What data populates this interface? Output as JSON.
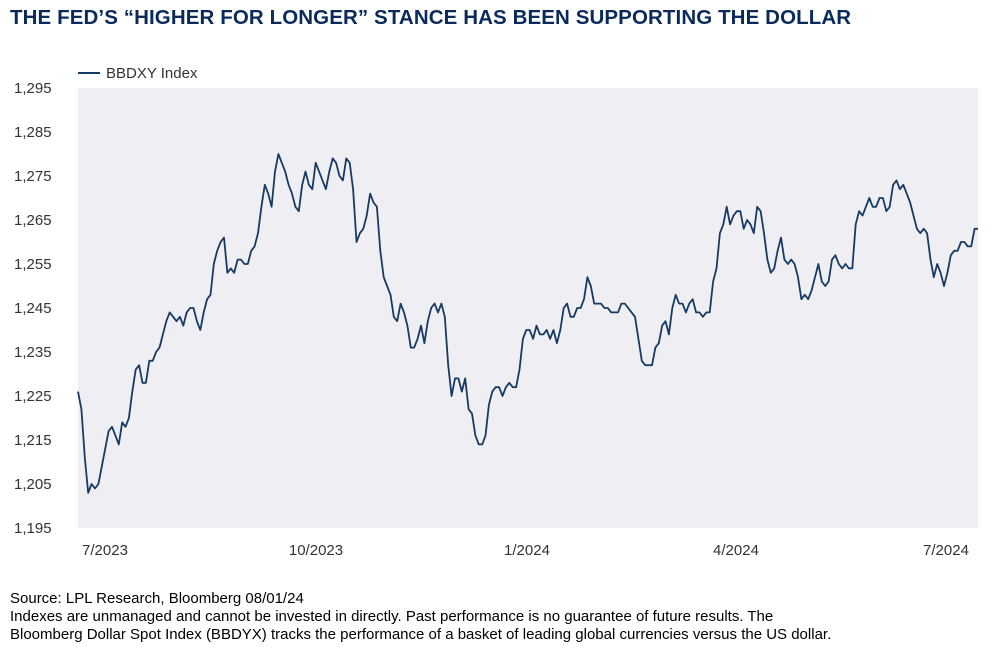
{
  "title": "THE FED’S “HIGHER FOR LONGER” STANCE HAS BEEN SUPPORTING THE DOLLAR",
  "footer": {
    "source": "Source: LPL Research, Bloomberg 08/01/24",
    "disclaimer_line1": "Indexes are unmanaged and cannot be invested in directly. Past performance is no guarantee of future results. The",
    "disclaimer_line2": "Bloomberg Dollar Spot Index (BBDYX) tracks the performance of a basket of leading global currencies versus the US dollar."
  },
  "colors": {
    "line": "#163a63",
    "plot_bg": "#efeff3",
    "title": "#0a2a5c"
  },
  "chart_data": {
    "type": "line",
    "legend_position": "top-left",
    "grid": false,
    "ylim": [
      1195,
      1295
    ],
    "y_ticks": [
      "1,295",
      "1,285",
      "1,275",
      "1,265",
      "1,255",
      "1,245",
      "1,235",
      "1,225",
      "1,215",
      "1,205",
      "1,195"
    ],
    "x_ticks": [
      "7/2023",
      "10/2023",
      "1/2024",
      "4/2024",
      "7/2024"
    ],
    "series": [
      {
        "name": "BBDXY Index",
        "values": [
          1226,
          1222,
          1211,
          1203,
          1205,
          1204,
          1205,
          1209,
          1213,
          1217,
          1218,
          1216,
          1214,
          1219,
          1218,
          1220,
          1226,
          1231,
          1232,
          1228,
          1228,
          1233,
          1233,
          1235,
          1236,
          1239,
          1242,
          1244,
          1243,
          1242,
          1243,
          1241,
          1244,
          1245,
          1245,
          1242,
          1240,
          1244,
          1247,
          1248,
          1255,
          1258,
          1260,
          1261,
          1253,
          1254,
          1253,
          1256,
          1256,
          1255,
          1255,
          1258,
          1259,
          1262,
          1268,
          1273,
          1271,
          1268,
          1276,
          1280,
          1278,
          1276,
          1273,
          1271,
          1268,
          1267,
          1273,
          1276,
          1273,
          1272,
          1278,
          1276,
          1274,
          1272,
          1276,
          1279,
          1278,
          1275,
          1274,
          1279,
          1278,
          1272,
          1260,
          1262,
          1263,
          1266,
          1271,
          1269,
          1268,
          1258,
          1252,
          1250,
          1248,
          1243,
          1242,
          1246,
          1244,
          1241,
          1236,
          1236,
          1238,
          1241,
          1237,
          1242,
          1245,
          1246,
          1244,
          1246,
          1243,
          1232,
          1225,
          1229,
          1229,
          1226,
          1229,
          1222,
          1221,
          1216,
          1214,
          1214,
          1216,
          1223,
          1226,
          1227,
          1227,
          1225,
          1227,
          1228,
          1227,
          1227,
          1231,
          1238,
          1240,
          1240,
          1238,
          1241,
          1239,
          1239,
          1240,
          1238,
          1240,
          1237,
          1240,
          1245,
          1246,
          1243,
          1243,
          1245,
          1245,
          1247,
          1252,
          1250,
          1246,
          1246,
          1246,
          1245,
          1245,
          1244,
          1244,
          1244,
          1246,
          1246,
          1245,
          1244,
          1243,
          1238,
          1233,
          1232,
          1232,
          1232,
          1236,
          1237,
          1241,
          1242,
          1239,
          1245,
          1248,
          1246,
          1246,
          1244,
          1246,
          1247,
          1244,
          1244,
          1243,
          1244,
          1244,
          1251,
          1254,
          1262,
          1264,
          1268,
          1264,
          1266,
          1267,
          1267,
          1263,
          1265,
          1264,
          1262,
          1268,
          1267,
          1262,
          1256,
          1253,
          1254,
          1258,
          1261,
          1256,
          1255,
          1256,
          1255,
          1252,
          1247,
          1248,
          1247,
          1249,
          1252,
          1255,
          1251,
          1250,
          1251,
          1256,
          1257,
          1255,
          1254,
          1255,
          1254,
          1254,
          1264,
          1267,
          1266,
          1268,
          1270,
          1268,
          1268,
          1270,
          1270,
          1267,
          1268,
          1273,
          1274,
          1272,
          1273,
          1271,
          1269,
          1266,
          1263,
          1262,
          1263,
          1262,
          1256,
          1252,
          1255,
          1253,
          1250,
          1253,
          1257,
          1258,
          1258,
          1260,
          1260,
          1259,
          1259,
          1263,
          1263
        ]
      }
    ]
  }
}
